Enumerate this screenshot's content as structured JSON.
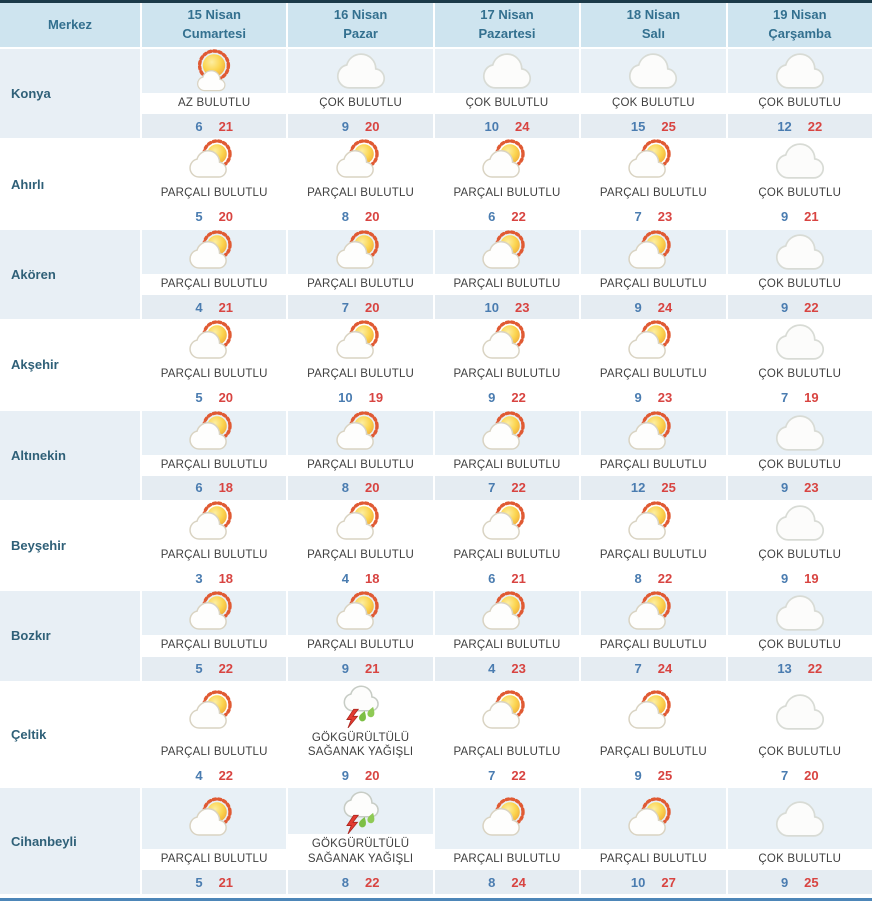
{
  "table": {
    "corner_label": "Merkez",
    "columns": [
      {
        "date": "15 Nisan",
        "day": "Cumartesi"
      },
      {
        "date": "16 Nisan",
        "day": "Pazar"
      },
      {
        "date": "17 Nisan",
        "day": "Pazartesi"
      },
      {
        "date": "18 Nisan",
        "day": "Salı"
      },
      {
        "date": "19 Nisan",
        "day": "Çarşamba"
      }
    ],
    "rows": [
      {
        "district": "Konya",
        "cells": [
          {
            "icon": "few-clouds-icon",
            "condition": "AZ BULUTLU",
            "min": 6,
            "max": 21
          },
          {
            "icon": "cloudy-icon",
            "condition": "ÇOK BULUTLU",
            "min": 9,
            "max": 20
          },
          {
            "icon": "cloudy-icon",
            "condition": "ÇOK BULUTLU",
            "min": 10,
            "max": 24
          },
          {
            "icon": "cloudy-icon",
            "condition": "ÇOK BULUTLU",
            "min": 15,
            "max": 25
          },
          {
            "icon": "cloudy-icon",
            "condition": "ÇOK BULUTLU",
            "min": 12,
            "max": 22
          }
        ]
      },
      {
        "district": "Ahırlı",
        "cells": [
          {
            "icon": "partly-cloudy-icon",
            "condition": "PARÇALI BULUTLU",
            "min": 5,
            "max": 20
          },
          {
            "icon": "partly-cloudy-icon",
            "condition": "PARÇALI BULUTLU",
            "min": 8,
            "max": 20
          },
          {
            "icon": "partly-cloudy-icon",
            "condition": "PARÇALI BULUTLU",
            "min": 6,
            "max": 22
          },
          {
            "icon": "partly-cloudy-icon",
            "condition": "PARÇALI BULUTLU",
            "min": 7,
            "max": 23
          },
          {
            "icon": "cloudy-icon",
            "condition": "ÇOK BULUTLU",
            "min": 9,
            "max": 21
          }
        ]
      },
      {
        "district": "Akören",
        "cells": [
          {
            "icon": "partly-cloudy-icon",
            "condition": "PARÇALI BULUTLU",
            "min": 4,
            "max": 21
          },
          {
            "icon": "partly-cloudy-icon",
            "condition": "PARÇALI BULUTLU",
            "min": 7,
            "max": 20
          },
          {
            "icon": "partly-cloudy-icon",
            "condition": "PARÇALI BULUTLU",
            "min": 10,
            "max": 23
          },
          {
            "icon": "partly-cloudy-icon",
            "condition": "PARÇALI BULUTLU",
            "min": 9,
            "max": 24
          },
          {
            "icon": "cloudy-icon",
            "condition": "ÇOK BULUTLU",
            "min": 9,
            "max": 22
          }
        ]
      },
      {
        "district": "Akşehir",
        "cells": [
          {
            "icon": "partly-cloudy-icon",
            "condition": "PARÇALI BULUTLU",
            "min": 5,
            "max": 20
          },
          {
            "icon": "partly-cloudy-icon",
            "condition": "PARÇALI BULUTLU",
            "min": 10,
            "max": 19
          },
          {
            "icon": "partly-cloudy-icon",
            "condition": "PARÇALI BULUTLU",
            "min": 9,
            "max": 22
          },
          {
            "icon": "partly-cloudy-icon",
            "condition": "PARÇALI BULUTLU",
            "min": 9,
            "max": 23
          },
          {
            "icon": "cloudy-icon",
            "condition": "ÇOK BULUTLU",
            "min": 7,
            "max": 19
          }
        ]
      },
      {
        "district": "Altınekin",
        "cells": [
          {
            "icon": "partly-cloudy-icon",
            "condition": "PARÇALI BULUTLU",
            "min": 6,
            "max": 18
          },
          {
            "icon": "partly-cloudy-icon",
            "condition": "PARÇALI BULUTLU",
            "min": 8,
            "max": 20
          },
          {
            "icon": "partly-cloudy-icon",
            "condition": "PARÇALI BULUTLU",
            "min": 7,
            "max": 22
          },
          {
            "icon": "partly-cloudy-icon",
            "condition": "PARÇALI BULUTLU",
            "min": 12,
            "max": 25
          },
          {
            "icon": "cloudy-icon",
            "condition": "ÇOK BULUTLU",
            "min": 9,
            "max": 23
          }
        ]
      },
      {
        "district": "Beyşehir",
        "cells": [
          {
            "icon": "partly-cloudy-icon",
            "condition": "PARÇALI BULUTLU",
            "min": 3,
            "max": 18
          },
          {
            "icon": "partly-cloudy-icon",
            "condition": "PARÇALI BULUTLU",
            "min": 4,
            "max": 18
          },
          {
            "icon": "partly-cloudy-icon",
            "condition": "PARÇALI BULUTLU",
            "min": 6,
            "max": 21
          },
          {
            "icon": "partly-cloudy-icon",
            "condition": "PARÇALI BULUTLU",
            "min": 8,
            "max": 22
          },
          {
            "icon": "cloudy-icon",
            "condition": "ÇOK BULUTLU",
            "min": 9,
            "max": 19
          }
        ]
      },
      {
        "district": "Bozkır",
        "cells": [
          {
            "icon": "partly-cloudy-icon",
            "condition": "PARÇALI BULUTLU",
            "min": 5,
            "max": 22
          },
          {
            "icon": "partly-cloudy-icon",
            "condition": "PARÇALI BULUTLU",
            "min": 9,
            "max": 21
          },
          {
            "icon": "partly-cloudy-icon",
            "condition": "PARÇALI BULUTLU",
            "min": 4,
            "max": 23
          },
          {
            "icon": "partly-cloudy-icon",
            "condition": "PARÇALI BULUTLU",
            "min": 7,
            "max": 24
          },
          {
            "icon": "cloudy-icon",
            "condition": "ÇOK BULUTLU",
            "min": 13,
            "max": 22
          }
        ]
      },
      {
        "district": "Çeltik",
        "cells": [
          {
            "icon": "partly-cloudy-icon",
            "condition": "PARÇALI BULUTLU",
            "min": 4,
            "max": 22
          },
          {
            "icon": "thunderstorm-icon",
            "condition": "GÖKGÜRÜLTÜLÜ SAĞANAK YAĞIŞLI",
            "min": 9,
            "max": 20
          },
          {
            "icon": "partly-cloudy-icon",
            "condition": "PARÇALI BULUTLU",
            "min": 7,
            "max": 22
          },
          {
            "icon": "partly-cloudy-icon",
            "condition": "PARÇALI BULUTLU",
            "min": 9,
            "max": 25
          },
          {
            "icon": "cloudy-icon",
            "condition": "ÇOK BULUTLU",
            "min": 7,
            "max": 20
          }
        ]
      },
      {
        "district": "Cihanbeyli",
        "cells": [
          {
            "icon": "partly-cloudy-icon",
            "condition": "PARÇALI BULUTLU",
            "min": 5,
            "max": 21
          },
          {
            "icon": "thunderstorm-icon",
            "condition": "GÖKGÜRÜLTÜLÜ SAĞANAK YAĞIŞLI",
            "min": 8,
            "max": 22
          },
          {
            "icon": "partly-cloudy-icon",
            "condition": "PARÇALI BULUTLU",
            "min": 8,
            "max": 24
          },
          {
            "icon": "partly-cloudy-icon",
            "condition": "PARÇALI BULUTLU",
            "min": 10,
            "max": 27
          },
          {
            "icon": "cloudy-icon",
            "condition": "ÇOK BULUTLU",
            "min": 9,
            "max": 25
          }
        ]
      }
    ]
  },
  "colors": {
    "top_border": "#1b3a49",
    "bottom_border": "#4d86b8",
    "header_bg": "#cee4ef",
    "header_text": "#33708f",
    "shaded_row_bg": "#e8eff5",
    "min_temp": "#4a7cb0",
    "max_temp": "#d84441",
    "condition_text": "#3f3f3f"
  }
}
